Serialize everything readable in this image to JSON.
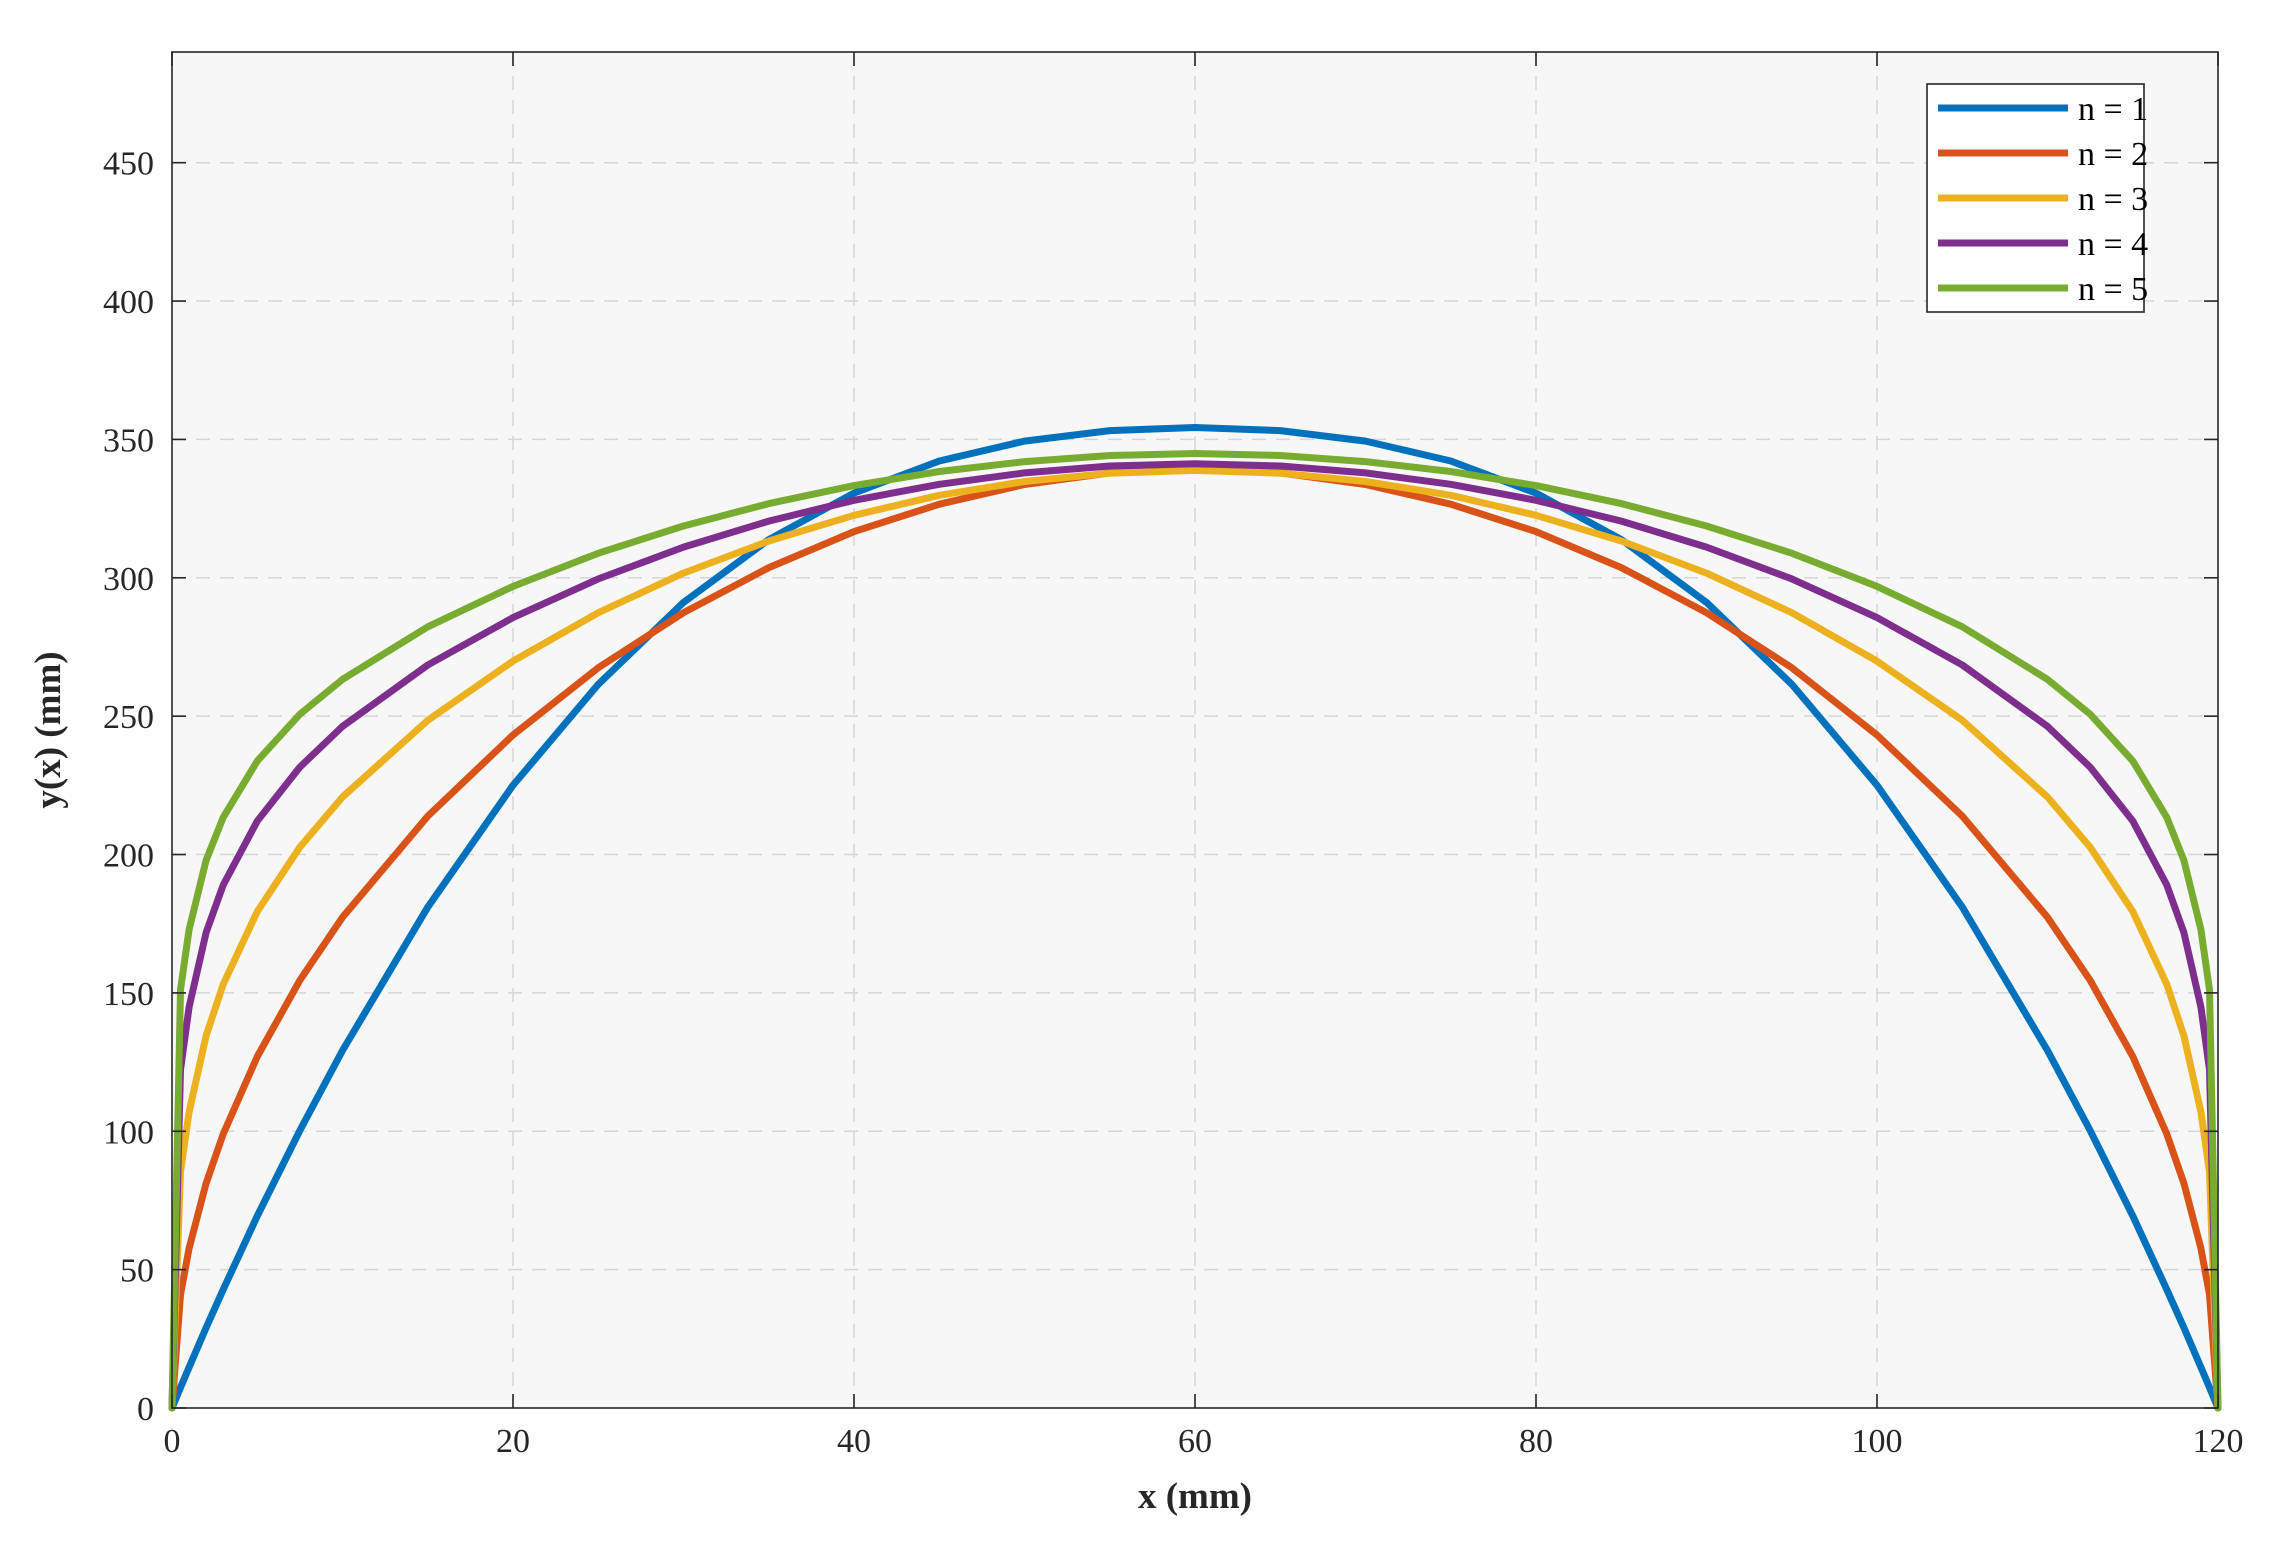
{
  "chart_data": {
    "type": "line",
    "title": "",
    "xlabel": "x (mm)",
    "ylabel": "y(x) (mm)",
    "xlim": [
      0,
      120
    ],
    "ylim": [
      0,
      490
    ],
    "xticks": [
      0,
      20,
      40,
      60,
      80,
      100,
      120
    ],
    "xtick_labels": [
      "0",
      "20",
      "40",
      "60",
      "80",
      "100",
      "120"
    ],
    "yticks": [
      0,
      50,
      100,
      150,
      200,
      250,
      300,
      350,
      400,
      450
    ],
    "ytick_labels": [
      "0",
      "50",
      "100",
      "150",
      "200",
      "250",
      "300",
      "350",
      "400",
      "450"
    ],
    "grid": true,
    "legend_position": "top-right",
    "x": [
      0,
      0.5,
      1,
      2,
      3,
      5,
      7.5,
      10,
      15,
      20,
      25,
      30,
      35,
      40,
      45,
      50,
      55,
      60,
      65,
      70,
      75,
      80,
      85,
      90,
      95,
      100,
      105,
      110,
      112.5,
      115,
      117,
      118,
      119,
      119.5,
      120
    ],
    "series": [
      {
        "name": "n = 1",
        "color": "#0072BD",
        "values": [
          0,
          7.4,
          14.7,
          29,
          42.8,
          69.4,
          100.3,
          129.2,
          181,
          225,
          261.5,
          291.1,
          313.8,
          330.6,
          342.2,
          349.4,
          353.2,
          354.3,
          353.2,
          349.4,
          342.2,
          330.6,
          313.8,
          291.1,
          261.5,
          225,
          181,
          129.2,
          100.3,
          69.4,
          42.8,
          29,
          14.7,
          7.4,
          0
        ]
      },
      {
        "name": "n = 2",
        "color": "#D95319",
        "values": [
          0,
          40.9,
          57.7,
          81.2,
          99,
          127,
          154.6,
          177.3,
          213.9,
          243.2,
          267.5,
          287.4,
          303.7,
          316.7,
          326.6,
          333.7,
          337.9,
          339.3,
          337.9,
          333.7,
          326.6,
          316.7,
          303.7,
          287.4,
          267.5,
          243.2,
          213.9,
          177.3,
          154.6,
          127,
          99,
          81.2,
          57.7,
          40.9,
          0
        ]
      },
      {
        "name": "n = 3",
        "color": "#EDB120",
        "values": [
          0,
          85.4,
          107,
          134.5,
          153.1,
          179.4,
          202.7,
          220.8,
          248.5,
          269.9,
          287.4,
          301.7,
          313.3,
          322.6,
          329.8,
          334.8,
          337.8,
          338.8,
          337.8,
          334.8,
          329.8,
          322.6,
          313.3,
          301.7,
          287.4,
          269.9,
          248.5,
          220.8,
          202.7,
          179.4,
          153.1,
          134.5,
          107,
          85.4,
          0
        ]
      },
      {
        "name": "n = 4",
        "color": "#7E2F8E",
        "values": [
          0,
          122.3,
          144.9,
          171.8,
          189,
          212.1,
          231.6,
          246.3,
          268.5,
          285.6,
          299.6,
          311.1,
          320.5,
          328,
          333.8,
          337.9,
          340.4,
          341.2,
          340.4,
          337.9,
          333.8,
          328,
          320.5,
          311.1,
          299.6,
          285.6,
          268.5,
          246.3,
          231.6,
          212.1,
          189,
          171.8,
          144.9,
          122.3,
          0
        ]
      },
      {
        "name": "n = 5",
        "color": "#77AC30",
        "values": [
          0,
          151.2,
          172.9,
          197.9,
          213.4,
          233.8,
          250.7,
          263.3,
          282.3,
          296.9,
          308.9,
          318.7,
          326.8,
          333.3,
          338.4,
          342,
          344.2,
          344.9,
          344.2,
          342,
          338.4,
          333.3,
          326.8,
          318.7,
          308.9,
          296.9,
          282.3,
          263.3,
          250.7,
          233.8,
          213.4,
          197.9,
          172.9,
          151.2,
          0
        ]
      }
    ]
  }
}
